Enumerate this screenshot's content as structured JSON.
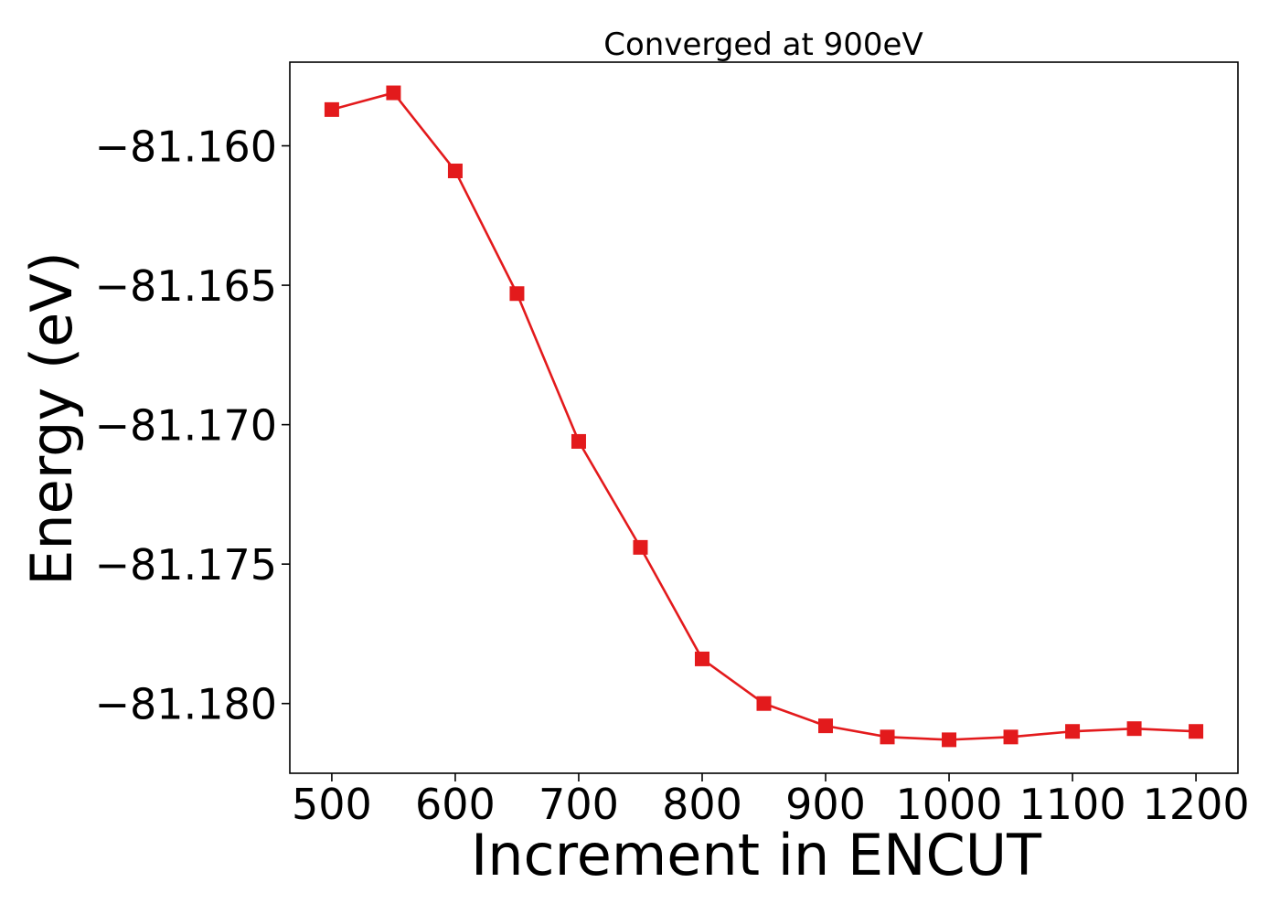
{
  "chart_data": {
    "type": "line",
    "title": "Converged at 900eV",
    "xlabel": "Increment in ENCUT",
    "ylabel": "Energy (eV)",
    "xlim": [
      466,
      1234
    ],
    "ylim": [
      -81.1825,
      -81.157
    ],
    "x_ticks": [
      500,
      600,
      700,
      800,
      900,
      1000,
      1100,
      1200
    ],
    "x_tick_labels": [
      "500",
      "600",
      "700",
      "800",
      "900",
      "1000",
      "1100",
      "1200"
    ],
    "y_ticks": [
      -81.16,
      -81.165,
      -81.17,
      -81.175,
      -81.18
    ],
    "y_tick_labels": [
      "−81.160",
      "−81.165",
      "−81.170",
      "−81.175",
      "−81.180"
    ],
    "grid": false,
    "legend": "none",
    "series": [
      {
        "color": "#e31a1c",
        "marker": "square",
        "x": [
          500,
          550,
          600,
          650,
          700,
          750,
          800,
          850,
          900,
          950,
          1000,
          1050,
          1100,
          1150,
          1200
        ],
        "y": [
          -81.1587,
          -81.1581,
          -81.1609,
          -81.1653,
          -81.1706,
          -81.1744,
          -81.1784,
          -81.18,
          -81.1808,
          -81.1812,
          -81.1813,
          -81.1812,
          -81.181,
          -81.1809,
          -81.181
        ]
      }
    ]
  }
}
